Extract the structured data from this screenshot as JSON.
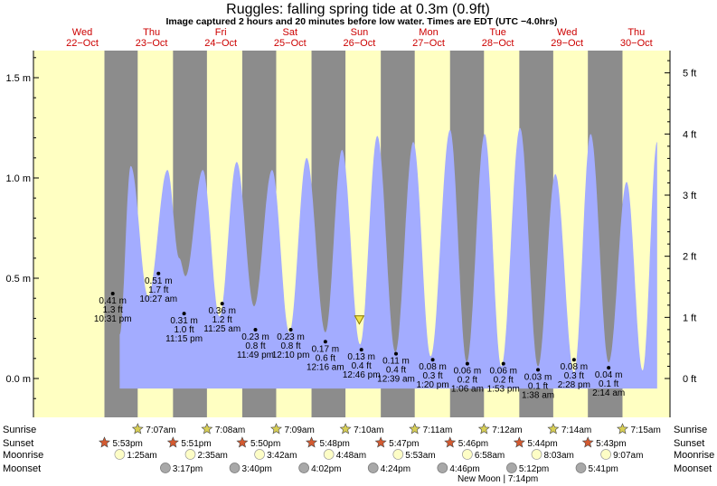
{
  "chart_data": {
    "type": "area",
    "title": "Ruggles: falling  spring tide at 0.3m (0.9ft)",
    "subtitle": "Image captured 2 hours and 20 minutes before low water. Times are EDT (UTC −4.0hrs)",
    "y_unit_left": "m",
    "y_unit_right": "ft",
    "ylim": [
      -0.15,
      1.64
    ],
    "left_ticks": [
      {
        "value": 0.0,
        "label": "0.0 m"
      },
      {
        "value": 0.5,
        "label": "0.5 m"
      },
      {
        "value": 1.0,
        "label": "1.0 m"
      },
      {
        "value": 1.5,
        "label": "1.5 m"
      }
    ],
    "right_ticks": [
      {
        "value": 0,
        "label": "0 ft"
      },
      {
        "value": 1,
        "label": "1 ft"
      },
      {
        "value": 2,
        "label": "2 ft"
      },
      {
        "value": 3,
        "label": "3 ft"
      },
      {
        "value": 4,
        "label": "4 ft"
      },
      {
        "value": 5,
        "label": "5 ft"
      }
    ],
    "x_range_days": [
      0,
      8.45
    ],
    "days": [
      {
        "day": "Wed",
        "date": "22−Oct",
        "x": 0
      },
      {
        "day": "Thu",
        "date": "23−Oct",
        "x": 1
      },
      {
        "day": "Fri",
        "date": "24−Oct",
        "x": 2
      },
      {
        "day": "Sat",
        "date": "25−Oct",
        "x": 3
      },
      {
        "day": "Sun",
        "date": "26−Oct",
        "x": 4
      },
      {
        "day": "Mon",
        "date": "27−Oct",
        "x": 5
      },
      {
        "day": "Tue",
        "date": "28−Oct",
        "x": 6
      },
      {
        "day": "Wed",
        "date": "29−Oct",
        "x": 7
      },
      {
        "day": "Thu",
        "date": "30−Oct",
        "x": 8
      }
    ],
    "series": [
      {
        "x": [
          0.54,
          0.7,
          0.95,
          1.23,
          1.4,
          1.49,
          1.74,
          1.98,
          2.23,
          2.48,
          2.74,
          2.99,
          3.24,
          3.51,
          3.75,
          4.01,
          4.26,
          4.52,
          4.78,
          5.03,
          5.31,
          5.55,
          5.81,
          6.05,
          6.32,
          6.58,
          6.83,
          7.1,
          7.34,
          7.6,
          7.86,
          8.09,
          8.3
        ],
        "y": [
          0.22,
          1.06,
          0.41,
          1.04,
          0.6,
          0.51,
          1.04,
          0.31,
          1.08,
          0.36,
          1.04,
          0.23,
          1.1,
          0.23,
          1.14,
          0.17,
          1.21,
          0.13,
          1.18,
          0.11,
          1.24,
          0.08,
          1.22,
          0.06,
          1.25,
          0.06,
          1.02,
          0.03,
          1.22,
          0.08,
          0.98,
          0.04,
          1.18
        ]
      }
    ],
    "daylight": [
      {
        "rise": -0.5,
        "set": 0.32
      },
      {
        "rise": 0.8,
        "set": 1.31
      },
      {
        "rise": 1.8,
        "set": 2.31
      },
      {
        "rise": 2.8,
        "set": 3.31
      },
      {
        "rise": 3.8,
        "set": 4.31
      },
      {
        "rise": 4.8,
        "set": 5.31
      },
      {
        "rise": 5.8,
        "set": 6.31
      },
      {
        "rise": 6.8,
        "set": 7.3
      },
      {
        "rise": 7.8,
        "set": 8.45
      }
    ],
    "tide_labels": [
      {
        "x": 0.44,
        "y": 0.41,
        "m": "0.41 m",
        "ft": "1.3 ft",
        "time": "10:31 pm"
      },
      {
        "x": 1.1,
        "y": 0.51,
        "m": "0.51 m",
        "ft": "1.7 ft",
        "time": "10:27 am"
      },
      {
        "x": 1.47,
        "y": 0.31,
        "m": "0.31 m",
        "ft": "1.0 ft",
        "time": "11:15 pm"
      },
      {
        "x": 2.02,
        "y": 0.36,
        "m": "0.36 m",
        "ft": "1.2 ft",
        "time": "11:25 am"
      },
      {
        "x": 2.5,
        "y": 0.23,
        "m": "0.23 m",
        "ft": "0.8 ft",
        "time": "11:49 pm"
      },
      {
        "x": 3.01,
        "y": 0.23,
        "m": "0.23 m",
        "ft": "0.8 ft",
        "time": "12:10 pm"
      },
      {
        "x": 3.51,
        "y": 0.17,
        "m": "0.17 m",
        "ft": "0.6 ft",
        "time": "12:16 am"
      },
      {
        "x": 4.03,
        "y": 0.13,
        "m": "0.13 m",
        "ft": "0.4 ft",
        "time": "12:46 pm"
      },
      {
        "x": 4.53,
        "y": 0.11,
        "m": "0.11 m",
        "ft": "0.4 ft",
        "time": "12:39 am"
      },
      {
        "x": 5.06,
        "y": 0.08,
        "m": "0.08 m",
        "ft": "0.3 ft",
        "time": "1:20 pm"
      },
      {
        "x": 5.56,
        "y": 0.06,
        "m": "0.06 m",
        "ft": "0.2 ft",
        "time": "1:06 am"
      },
      {
        "x": 6.08,
        "y": 0.06,
        "m": "0.06 m",
        "ft": "0.2 ft",
        "time": "1:53 pm"
      },
      {
        "x": 6.58,
        "y": 0.03,
        "m": "0.03 m",
        "ft": "0.1 ft",
        "time": "1:38 am"
      },
      {
        "x": 7.1,
        "y": 0.08,
        "m": "0.08 m",
        "ft": "0.3 ft",
        "time": "2:28 pm"
      },
      {
        "x": 7.6,
        "y": 0.04,
        "m": "0.04 m",
        "ft": "0.1 ft",
        "time": "2:14 am"
      }
    ],
    "current_marker": {
      "x": 4.0,
      "y": 0.29
    },
    "sunrise": [
      {
        "x": 0.8,
        "label": "7:07am"
      },
      {
        "x": 1.8,
        "label": "7:08am"
      },
      {
        "x": 2.8,
        "label": "7:09am"
      },
      {
        "x": 3.8,
        "label": "7:10am"
      },
      {
        "x": 4.8,
        "label": "7:11am"
      },
      {
        "x": 5.8,
        "label": "7:12am"
      },
      {
        "x": 6.8,
        "label": "7:14am"
      },
      {
        "x": 7.8,
        "label": "7:15am"
      }
    ],
    "sunset": [
      {
        "x": 0.32,
        "label": "5:53pm"
      },
      {
        "x": 1.31,
        "label": "5:51pm"
      },
      {
        "x": 2.31,
        "label": "5:50pm"
      },
      {
        "x": 3.31,
        "label": "5:48pm"
      },
      {
        "x": 4.31,
        "label": "5:47pm"
      },
      {
        "x": 5.31,
        "label": "5:46pm"
      },
      {
        "x": 6.31,
        "label": "5:44pm"
      },
      {
        "x": 7.3,
        "label": "5:43pm"
      }
    ],
    "moonrise": [
      {
        "x": 0.54,
        "label": "1:25am"
      },
      {
        "x": 1.56,
        "label": "2:35am"
      },
      {
        "x": 2.56,
        "label": "3:42am"
      },
      {
        "x": 3.56,
        "label": "4:48am"
      },
      {
        "x": 4.56,
        "label": "5:53am"
      },
      {
        "x": 5.56,
        "label": "6:58am"
      },
      {
        "x": 6.56,
        "label": "8:03am"
      },
      {
        "x": 7.56,
        "label": "9:07am"
      }
    ],
    "moonset": [
      {
        "x": 1.2,
        "label": "3:17pm"
      },
      {
        "x": 2.2,
        "label": "3:40pm"
      },
      {
        "x": 3.2,
        "label": "4:02pm"
      },
      {
        "x": 4.2,
        "label": "4:24pm"
      },
      {
        "x": 5.2,
        "label": "4:46pm"
      },
      {
        "x": 6.2,
        "label": "5:12pm"
      },
      {
        "x": 7.2,
        "label": "5:41pm"
      }
    ],
    "row_labels": {
      "sunrise": "Sunrise",
      "sunset": "Sunset",
      "moonrise": "Moonrise",
      "moonset": "Moonset"
    },
    "note": {
      "x": 6.0,
      "text": "New Moon | 7:14pm"
    },
    "colors": {
      "day": "#ffffc2",
      "night": "#8c8c8c",
      "tide": "#a3acff",
      "day_label": "#cc0000",
      "sunrise_star": "#d8cf55",
      "sunset_star": "#d45a30",
      "moonrise": "#fdfdc6",
      "moonset": "#a8a8a8"
    }
  }
}
